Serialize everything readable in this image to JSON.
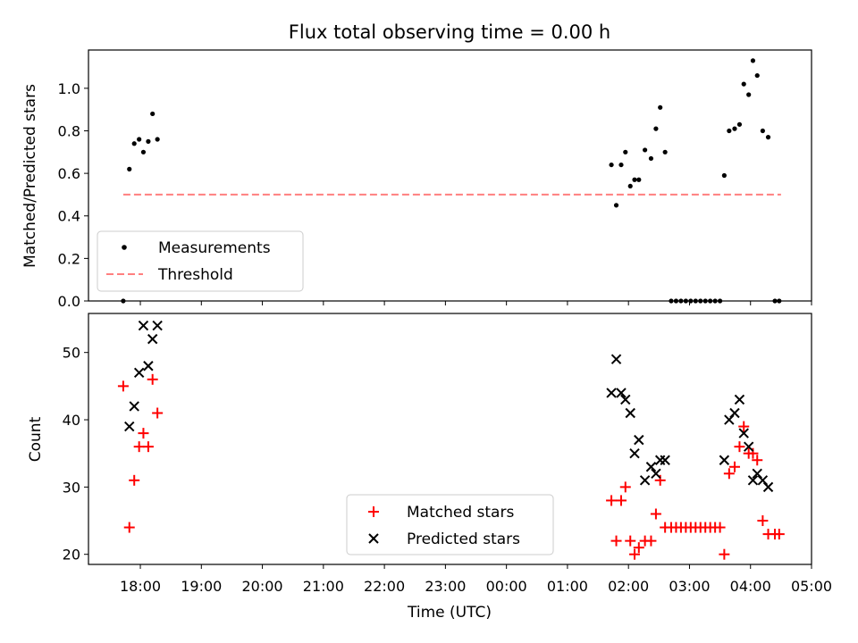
{
  "chart_data": [
    {
      "type": "scatter",
      "title": "Flux total observing time = 0.00 h",
      "ylabel": "Matched/Predicted stars",
      "xlabel": "",
      "x_unit": "hours since 00:00 UTC",
      "xlim": [
        -6.85,
        5.0
      ],
      "ylim": [
        0,
        1.18
      ],
      "yticks": [
        "0.0",
        "0.2",
        "0.4",
        "0.6",
        "0.8",
        "1.0"
      ],
      "legend_position": "lower-left",
      "series": [
        {
          "name": "Measurements",
          "marker": "dot",
          "color": "#000000",
          "points": [
            [
              -6.28,
              0.0
            ],
            [
              -6.18,
              0.62
            ],
            [
              -6.1,
              0.74
            ],
            [
              -6.02,
              0.76
            ],
            [
              -5.95,
              0.7
            ],
            [
              -5.87,
              0.75
            ],
            [
              -5.8,
              0.88
            ],
            [
              -5.72,
              0.76
            ],
            [
              1.72,
              0.64
            ],
            [
              1.8,
              0.45
            ],
            [
              1.88,
              0.64
            ],
            [
              1.95,
              0.7
            ],
            [
              2.03,
              0.54
            ],
            [
              2.1,
              0.57
            ],
            [
              2.17,
              0.57
            ],
            [
              2.27,
              0.71
            ],
            [
              2.37,
              0.67
            ],
            [
              2.45,
              0.81
            ],
            [
              2.52,
              0.91
            ],
            [
              2.6,
              0.7
            ],
            [
              2.7,
              0.0
            ],
            [
              2.78,
              0.0
            ],
            [
              2.86,
              0.0
            ],
            [
              2.94,
              0.0
            ],
            [
              3.02,
              0.0
            ],
            [
              3.1,
              0.0
            ],
            [
              3.18,
              0.0
            ],
            [
              3.26,
              0.0
            ],
            [
              3.34,
              0.0
            ],
            [
              3.42,
              0.0
            ],
            [
              3.5,
              0.0
            ],
            [
              3.57,
              0.59
            ],
            [
              3.65,
              0.8
            ],
            [
              3.74,
              0.81
            ],
            [
              3.82,
              0.83
            ],
            [
              3.89,
              1.02
            ],
            [
              3.97,
              0.97
            ],
            [
              4.04,
              1.13
            ],
            [
              4.11,
              1.06
            ],
            [
              4.2,
              0.8
            ],
            [
              4.29,
              0.77
            ],
            [
              4.4,
              0.0
            ],
            [
              4.47,
              0.0
            ]
          ]
        },
        {
          "name": "Threshold",
          "line": "dashed",
          "color": "#ff7f7f",
          "points": [
            [
              -6.28,
              0.5
            ],
            [
              4.5,
              0.5
            ]
          ]
        }
      ]
    },
    {
      "type": "scatter",
      "title": "",
      "ylabel": "Count",
      "xlabel": "Time (UTC)",
      "x_unit": "hours since 00:00 UTC",
      "xlim": [
        -6.85,
        5.0
      ],
      "ylim": [
        18.5,
        55.8
      ],
      "yticks": [
        "20",
        "30",
        "40",
        "50"
      ],
      "xticks": [
        "18:00",
        "19:00",
        "20:00",
        "21:00",
        "22:00",
        "23:00",
        "00:00",
        "01:00",
        "02:00",
        "03:00",
        "04:00",
        "05:00"
      ],
      "xtick_values": [
        -6,
        -5,
        -4,
        -3,
        -2,
        -1,
        0,
        1,
        2,
        3,
        4,
        5
      ],
      "legend_position": "lower-center",
      "series": [
        {
          "name": "Matched stars",
          "marker": "plus",
          "color": "#ff0000",
          "points": [
            [
              -6.28,
              45
            ],
            [
              -6.18,
              24
            ],
            [
              -6.1,
              31
            ],
            [
              -6.02,
              36
            ],
            [
              -5.95,
              38
            ],
            [
              -5.87,
              36
            ],
            [
              -5.8,
              46
            ],
            [
              -5.72,
              41
            ],
            [
              1.72,
              28
            ],
            [
              1.8,
              22
            ],
            [
              1.88,
              28
            ],
            [
              1.95,
              30
            ],
            [
              2.03,
              22
            ],
            [
              2.1,
              20
            ],
            [
              2.17,
              21
            ],
            [
              2.27,
              22
            ],
            [
              2.37,
              22
            ],
            [
              2.45,
              26
            ],
            [
              2.52,
              31
            ],
            [
              2.6,
              24
            ],
            [
              2.7,
              24
            ],
            [
              2.78,
              24
            ],
            [
              2.86,
              24
            ],
            [
              2.94,
              24
            ],
            [
              3.02,
              24
            ],
            [
              3.1,
              24
            ],
            [
              3.18,
              24
            ],
            [
              3.26,
              24
            ],
            [
              3.34,
              24
            ],
            [
              3.42,
              24
            ],
            [
              3.5,
              24
            ],
            [
              3.57,
              20
            ],
            [
              3.65,
              32
            ],
            [
              3.74,
              33
            ],
            [
              3.82,
              36
            ],
            [
              3.89,
              39
            ],
            [
              3.97,
              35
            ],
            [
              4.04,
              35
            ],
            [
              4.11,
              34
            ],
            [
              4.2,
              25
            ],
            [
              4.29,
              23
            ],
            [
              4.4,
              23
            ],
            [
              4.47,
              23
            ]
          ]
        },
        {
          "name": "Predicted stars",
          "marker": "x",
          "color": "#000000",
          "points": [
            [
              -6.18,
              39
            ],
            [
              -6.1,
              42
            ],
            [
              -6.02,
              47
            ],
            [
              -5.95,
              54
            ],
            [
              -5.87,
              48
            ],
            [
              -5.8,
              52
            ],
            [
              -5.72,
              54
            ],
            [
              1.72,
              44
            ],
            [
              1.8,
              49
            ],
            [
              1.88,
              44
            ],
            [
              1.95,
              43
            ],
            [
              2.03,
              41
            ],
            [
              2.1,
              35
            ],
            [
              2.17,
              37
            ],
            [
              2.27,
              31
            ],
            [
              2.37,
              33
            ],
            [
              2.45,
              32
            ],
            [
              2.52,
              34
            ],
            [
              2.6,
              34
            ],
            [
              3.57,
              34
            ],
            [
              3.65,
              40
            ],
            [
              3.74,
              41
            ],
            [
              3.82,
              43
            ],
            [
              3.89,
              38
            ],
            [
              3.97,
              36
            ],
            [
              4.04,
              31
            ],
            [
              4.11,
              32
            ],
            [
              4.2,
              31
            ],
            [
              4.29,
              30
            ]
          ]
        }
      ]
    }
  ]
}
